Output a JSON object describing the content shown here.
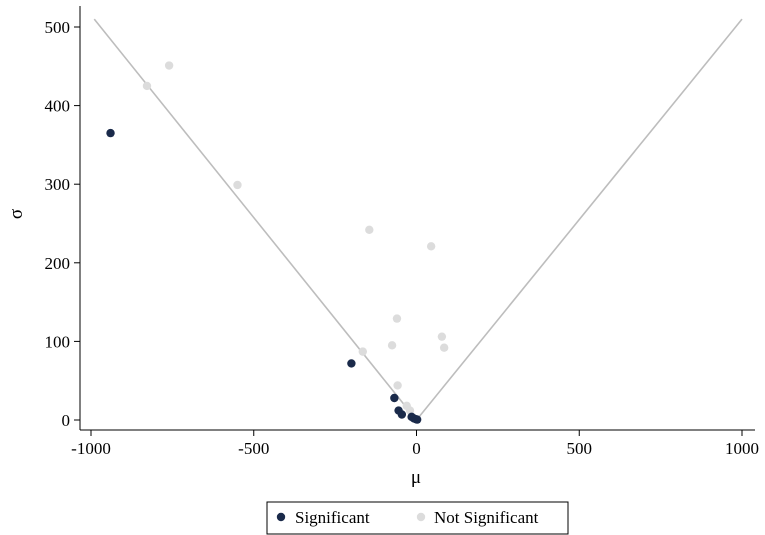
{
  "chart_data": {
    "type": "scatter",
    "title": "",
    "xlabel": "μ",
    "ylabel": "σ",
    "xlim": [
      -1000,
      1000
    ],
    "ylim": [
      0,
      510
    ],
    "x_ticks": [
      -1000,
      -500,
      0,
      500,
      1000
    ],
    "y_ticks": [
      0,
      100,
      200,
      300,
      400,
      500
    ],
    "x_tick_labels": [
      "-1000",
      "-500",
      "0",
      "500",
      "1000"
    ],
    "y_tick_labels": [
      "0",
      "100",
      "200",
      "300",
      "400",
      "500"
    ],
    "grid": false,
    "legend": {
      "position": "bottom"
    },
    "reference_lines": [
      {
        "x": [
          -990,
          0
        ],
        "y": [
          510,
          0
        ]
      },
      {
        "x": [
          0,
          1000
        ],
        "y": [
          0,
          510
        ]
      }
    ],
    "series": [
      {
        "name": "Significant",
        "color": "#1a2a4a",
        "points": [
          {
            "x": -940,
            "y": 365
          },
          {
            "x": -200,
            "y": 72
          },
          {
            "x": -68,
            "y": 28
          },
          {
            "x": -55,
            "y": 12
          },
          {
            "x": -45,
            "y": 7
          },
          {
            "x": -15,
            "y": 4
          },
          {
            "x": -8,
            "y": 2
          },
          {
            "x": -2,
            "y": 1
          },
          {
            "x": 2,
            "y": 0.5
          }
        ]
      },
      {
        "name": "Not Significant",
        "color": "#dcdcdc",
        "points": [
          {
            "x": -828,
            "y": 425
          },
          {
            "x": -760,
            "y": 451
          },
          {
            "x": -550,
            "y": 299
          },
          {
            "x": -145,
            "y": 242
          },
          {
            "x": 45,
            "y": 221
          },
          {
            "x": -60,
            "y": 129
          },
          {
            "x": 78,
            "y": 106
          },
          {
            "x": 85,
            "y": 92
          },
          {
            "x": -75,
            "y": 95
          },
          {
            "x": -165,
            "y": 87
          },
          {
            "x": -58,
            "y": 44
          },
          {
            "x": -30,
            "y": 18
          },
          {
            "x": -20,
            "y": 12
          }
        ]
      }
    ]
  }
}
